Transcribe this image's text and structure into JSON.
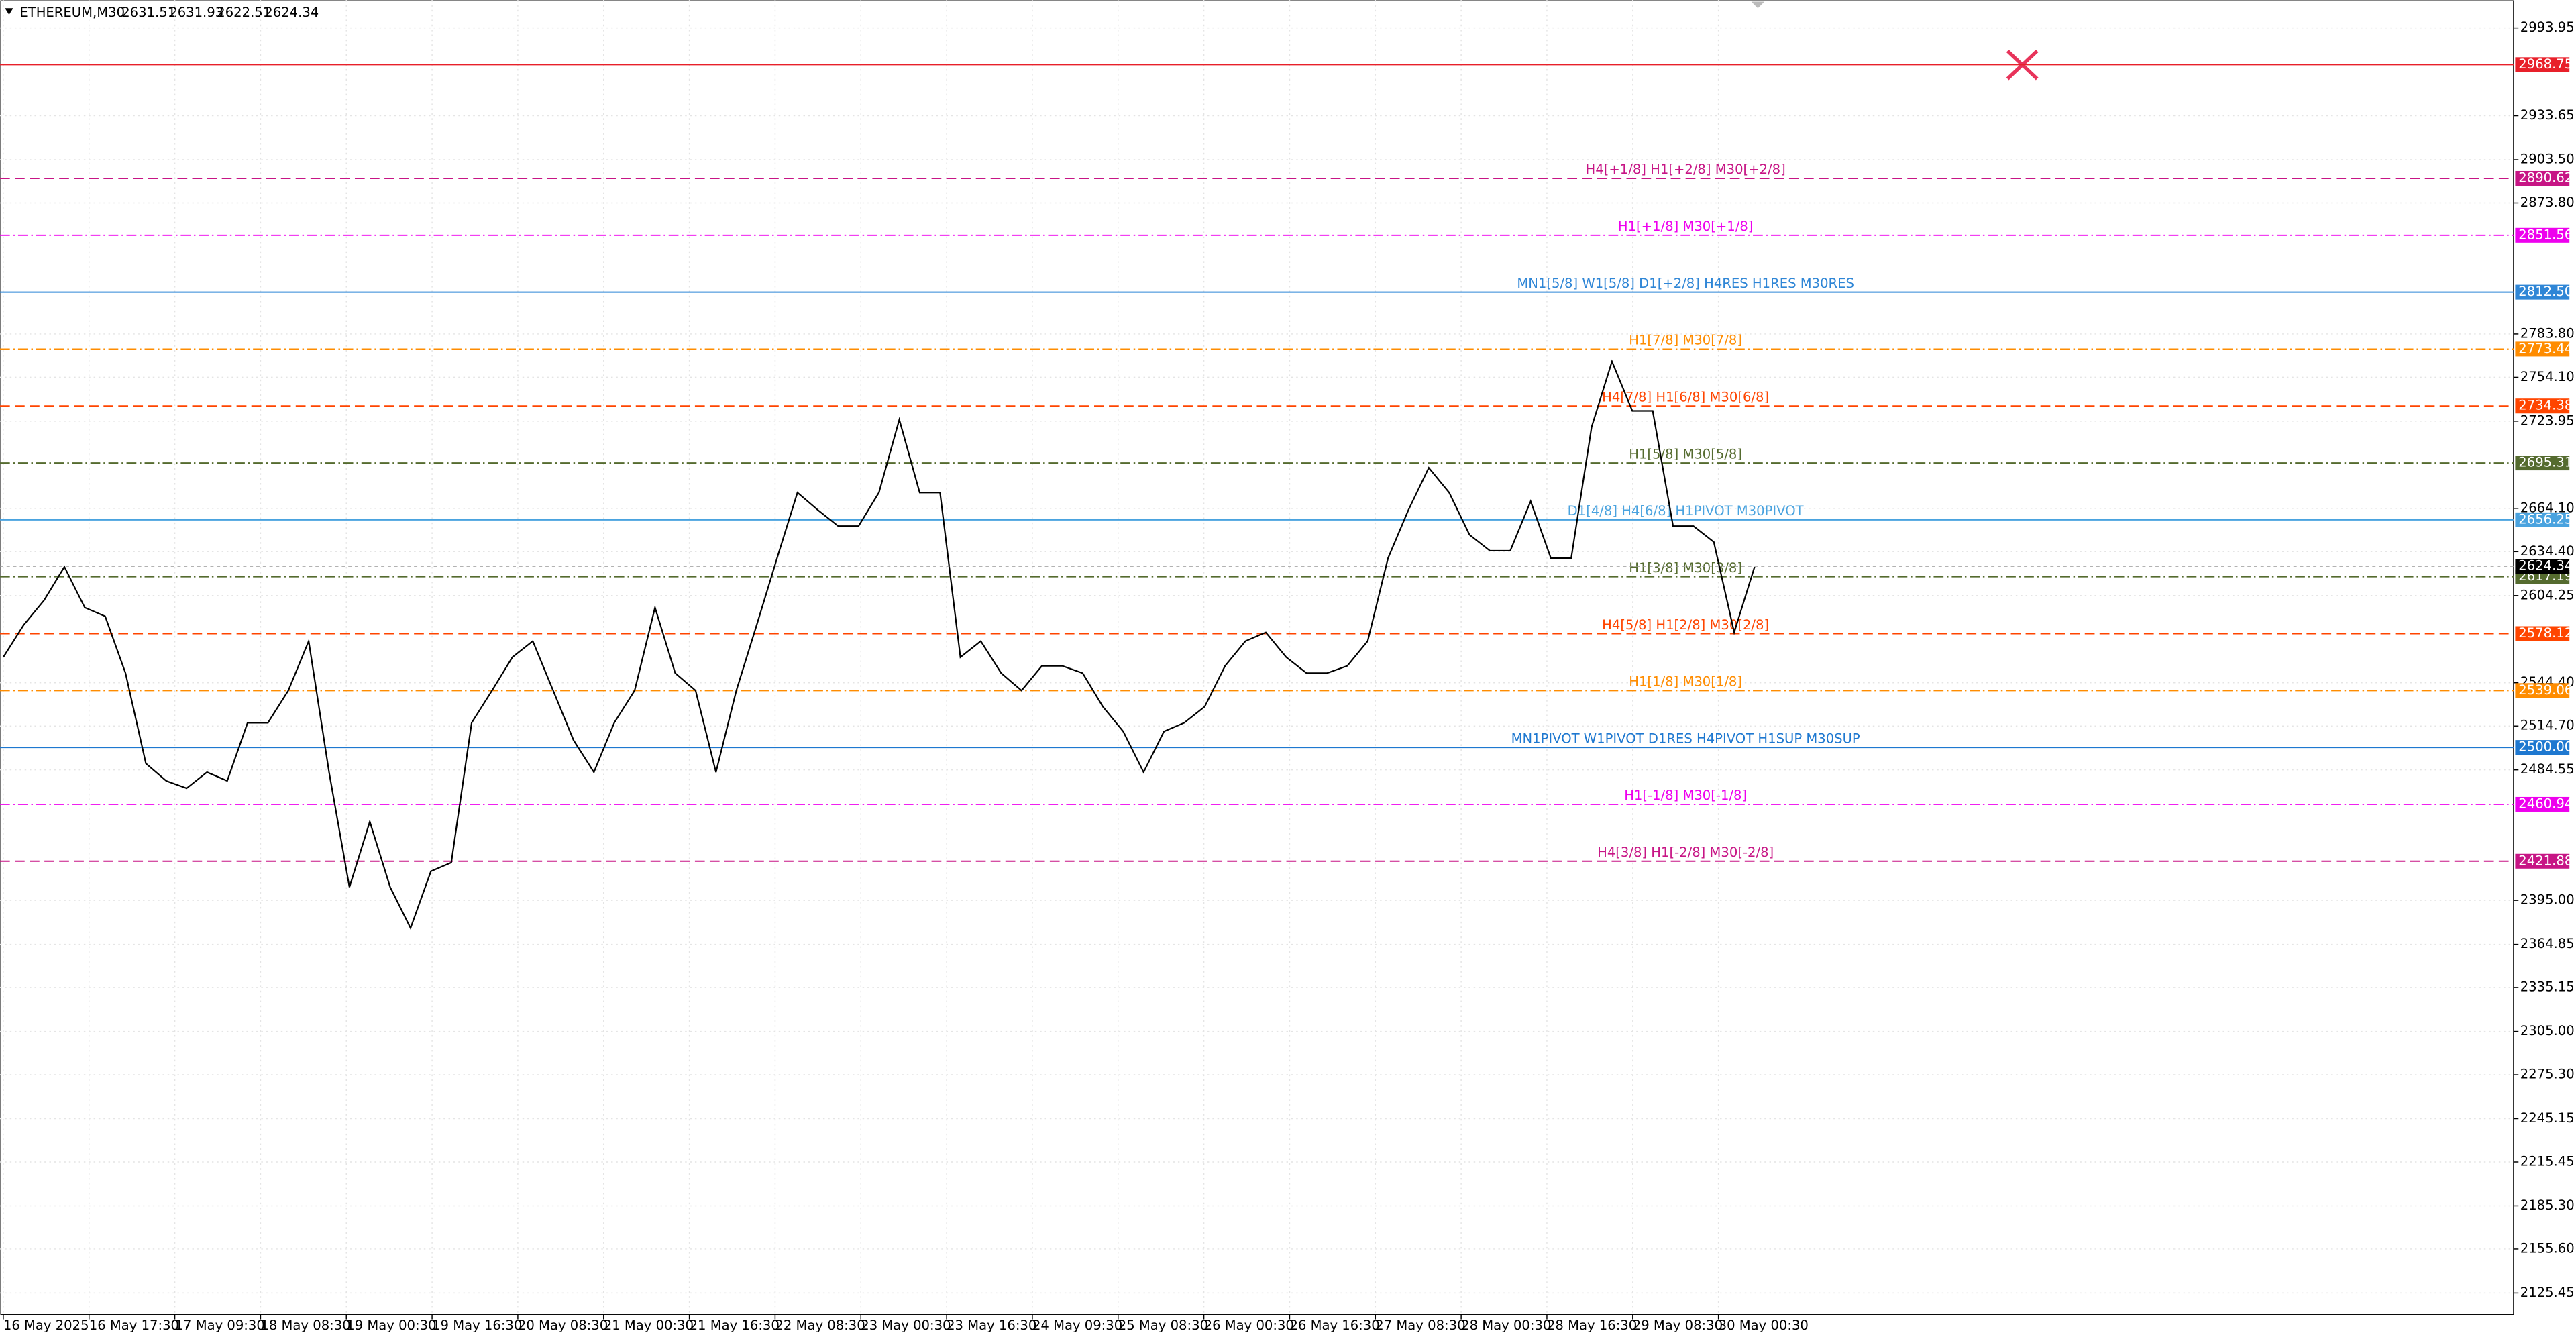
{
  "chart_data": {
    "type": "line",
    "symbol": "ETHEREUM,M30",
    "ohlc": [
      2631.51,
      2631.93,
      2622.51,
      2624.34
    ],
    "time_labels": [
      "16 May 2025",
      "16 May 17:30",
      "17 May 09:30",
      "18 May 08:30",
      "19 May 00:30",
      "19 May 16:30",
      "20 May 08:30",
      "21 May 00:30",
      "21 May 16:30",
      "22 May 08:30",
      "23 May 00:30",
      "23 May 16:30",
      "24 May 09:30",
      "25 May 08:30",
      "26 May 00:30",
      "26 May 16:30",
      "27 May 08:30",
      "28 May 00:30",
      "28 May 16:30",
      "29 May 08:30",
      "30 May 00:30"
    ],
    "values": [
      2562,
      2584,
      2601,
      2624,
      2596,
      2590,
      2551,
      2489,
      2477,
      2472,
      2483,
      2477,
      2517,
      2517,
      2539,
      2573,
      2483,
      2404,
      2449,
      2404,
      2376,
      2415,
      2421,
      2517,
      2539,
      2562,
      2573,
      2539,
      2505,
      2483,
      2517,
      2539,
      2596,
      2551,
      2539,
      2483,
      2539,
      2584,
      2630,
      2675,
      2663,
      2652,
      2652,
      2675,
      2725,
      2675,
      2675,
      2562,
      2573,
      2551,
      2539,
      2556,
      2556,
      2551,
      2528,
      2511,
      2483,
      2511,
      2517,
      2528,
      2556,
      2573,
      2579,
      2562,
      2551,
      2551,
      2556,
      2573,
      2630,
      2663,
      2692,
      2675,
      2646,
      2635,
      2635,
      2669,
      2630,
      2630,
      2720,
      2765,
      2731,
      2731,
      2652,
      2652,
      2641,
      2579,
      2624
    ],
    "color": "#000000",
    "ylim": [
      2110.8,
      3013.1
    ],
    "yticks": [
      2993.95,
      2933.65,
      {
        "value": 2903.5,
        "label": "2903.50"
      },
      {
        "value": 2873.8,
        "label": "2873.80"
      },
      {
        "value": 2783.8,
        "label": "2783.80"
      },
      {
        "value": 2754.1,
        "label": "2754.10"
      },
      2723.95,
      {
        "value": 2664.1,
        "label": "2664.10"
      },
      {
        "value": 2634.4,
        "label": "2634.40"
      },
      2604.25,
      {
        "value": 2544.4,
        "label": "2544.40"
      },
      {
        "value": 2514.7,
        "label": "2514.70"
      },
      2484.55,
      {
        "value": 2395.0,
        "label": "2395.00"
      },
      2364.85,
      2335.15,
      {
        "value": 2305.0,
        "label": "2305.00"
      },
      {
        "value": 2275.3,
        "label": "2275.30"
      },
      2245.15,
      2215.45,
      {
        "value": 2185.3,
        "label": "2185.30"
      },
      {
        "value": 2155.6,
        "label": "2155.60"
      },
      2125.45
    ],
    "grid": true,
    "levels": [
      {
        "value": 2968.75,
        "color": "#e8202a",
        "dash": "solid"
      },
      {
        "value": 2890.62,
        "color": "#c71585",
        "dash": "dash",
        "text": "H4[+1/8] H1[+2/8] M30[+2/8]"
      },
      {
        "value": 2851.56,
        "color": "#ee00ee",
        "dash": "dashdot",
        "text": "H1[+1/8] M30[+1/8]"
      },
      {
        "value": 2812.5,
        "value_label": "2812.50",
        "color": "#2f86d6",
        "dash": "solid",
        "text": "MN1[5/8] W1[5/8] D1[+2/8] H4RES H1RES M30RES"
      },
      {
        "value": 2773.44,
        "color": "#ff8c00",
        "dash": "dashdot",
        "text": "H1[7/8] M30[7/8]"
      },
      {
        "value": 2734.38,
        "color": "#ff4500",
        "dash": "dash",
        "text": "H4[7/8] H1[6/8] M30[6/8]"
      },
      {
        "value": 2695.31,
        "color": "#556b2f",
        "dash": "dashdot",
        "text": "H1[5/8] M30[5/8]"
      },
      {
        "value": 2656.25,
        "color": "#4aa3df",
        "dash": "solid",
        "text": "D1[4/8] H4[6/8] H1PIVOT M30PIVOT"
      },
      {
        "value": 2617.19,
        "color": "#556b2f",
        "dash": "dashdot",
        "text": "H1[3/8] M30[3/8]"
      },
      {
        "value": 2578.12,
        "color": "#ff4500",
        "dash": "dash",
        "text": "H4[5/8] H1[2/8] M30[2/8]"
      },
      {
        "value": 2539.06,
        "color": "#ff8c00",
        "dash": "dashdot",
        "text": "H1[1/8] M30[1/8]"
      },
      {
        "value": 2500.0,
        "value_label": "2500.00",
        "color": "#1e78d0",
        "dash": "solid",
        "text": "MN1PIVOT W1PIVOT D1RES H4PIVOT H1SUP M30SUP"
      },
      {
        "value": 2460.94,
        "color": "#ee00ee",
        "dash": "dashdot",
        "text": "H1[-1/8] M30[-1/8]"
      },
      {
        "value": 2421.88,
        "color": "#c71585",
        "dash": "dash",
        "text": "H4[3/8] H1[-2/8] M30[-2/8]"
      }
    ],
    "current_price": 2624.34
  }
}
